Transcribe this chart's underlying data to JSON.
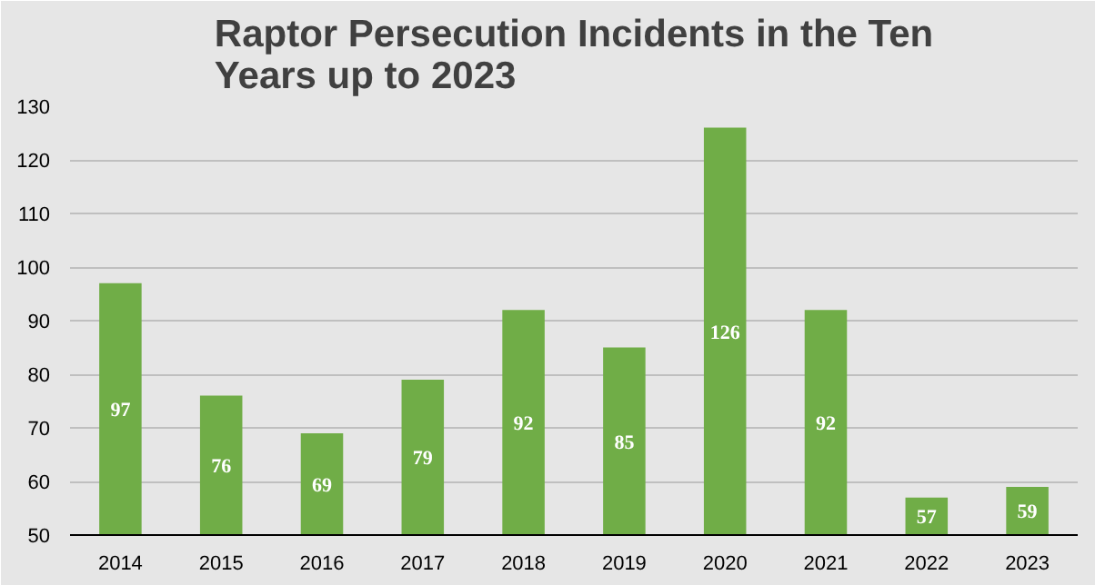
{
  "chart_data": {
    "type": "bar",
    "title": "Raptor Persecution Incidents in the Ten Years up to 2023",
    "categories": [
      "2014",
      "2015",
      "2016",
      "2017",
      "2018",
      "2019",
      "2020",
      "2021",
      "2022",
      "2023"
    ],
    "values": [
      97,
      76,
      69,
      79,
      92,
      85,
      126,
      92,
      57,
      59
    ],
    "color": "#70ad47",
    "ylim": [
      50,
      130
    ],
    "yticks": [
      50,
      60,
      70,
      80,
      90,
      100,
      110,
      120,
      130
    ],
    "grid": "y",
    "data_labels": true
  }
}
